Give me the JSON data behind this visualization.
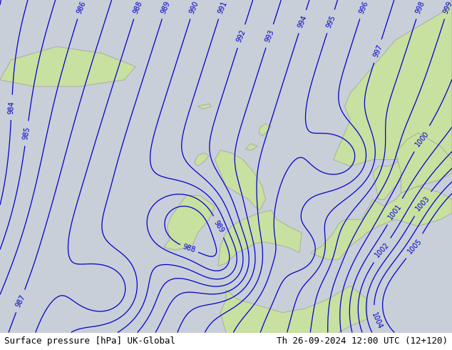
{
  "title_left": "Surface pressure [hPa] UK-Global",
  "title_right": "Th 26-09-2024 12:00 UTC (12+120)",
  "background_color": "#c8cfd8",
  "land_color": "#c8e0a0",
  "sea_color": "#c8cfd8",
  "contour_color": "#0000cc",
  "contour_linewidth": 0.9,
  "label_fontsize": 7,
  "title_fontsize": 9,
  "figsize": [
    6.34,
    4.9
  ],
  "dpi": 100
}
